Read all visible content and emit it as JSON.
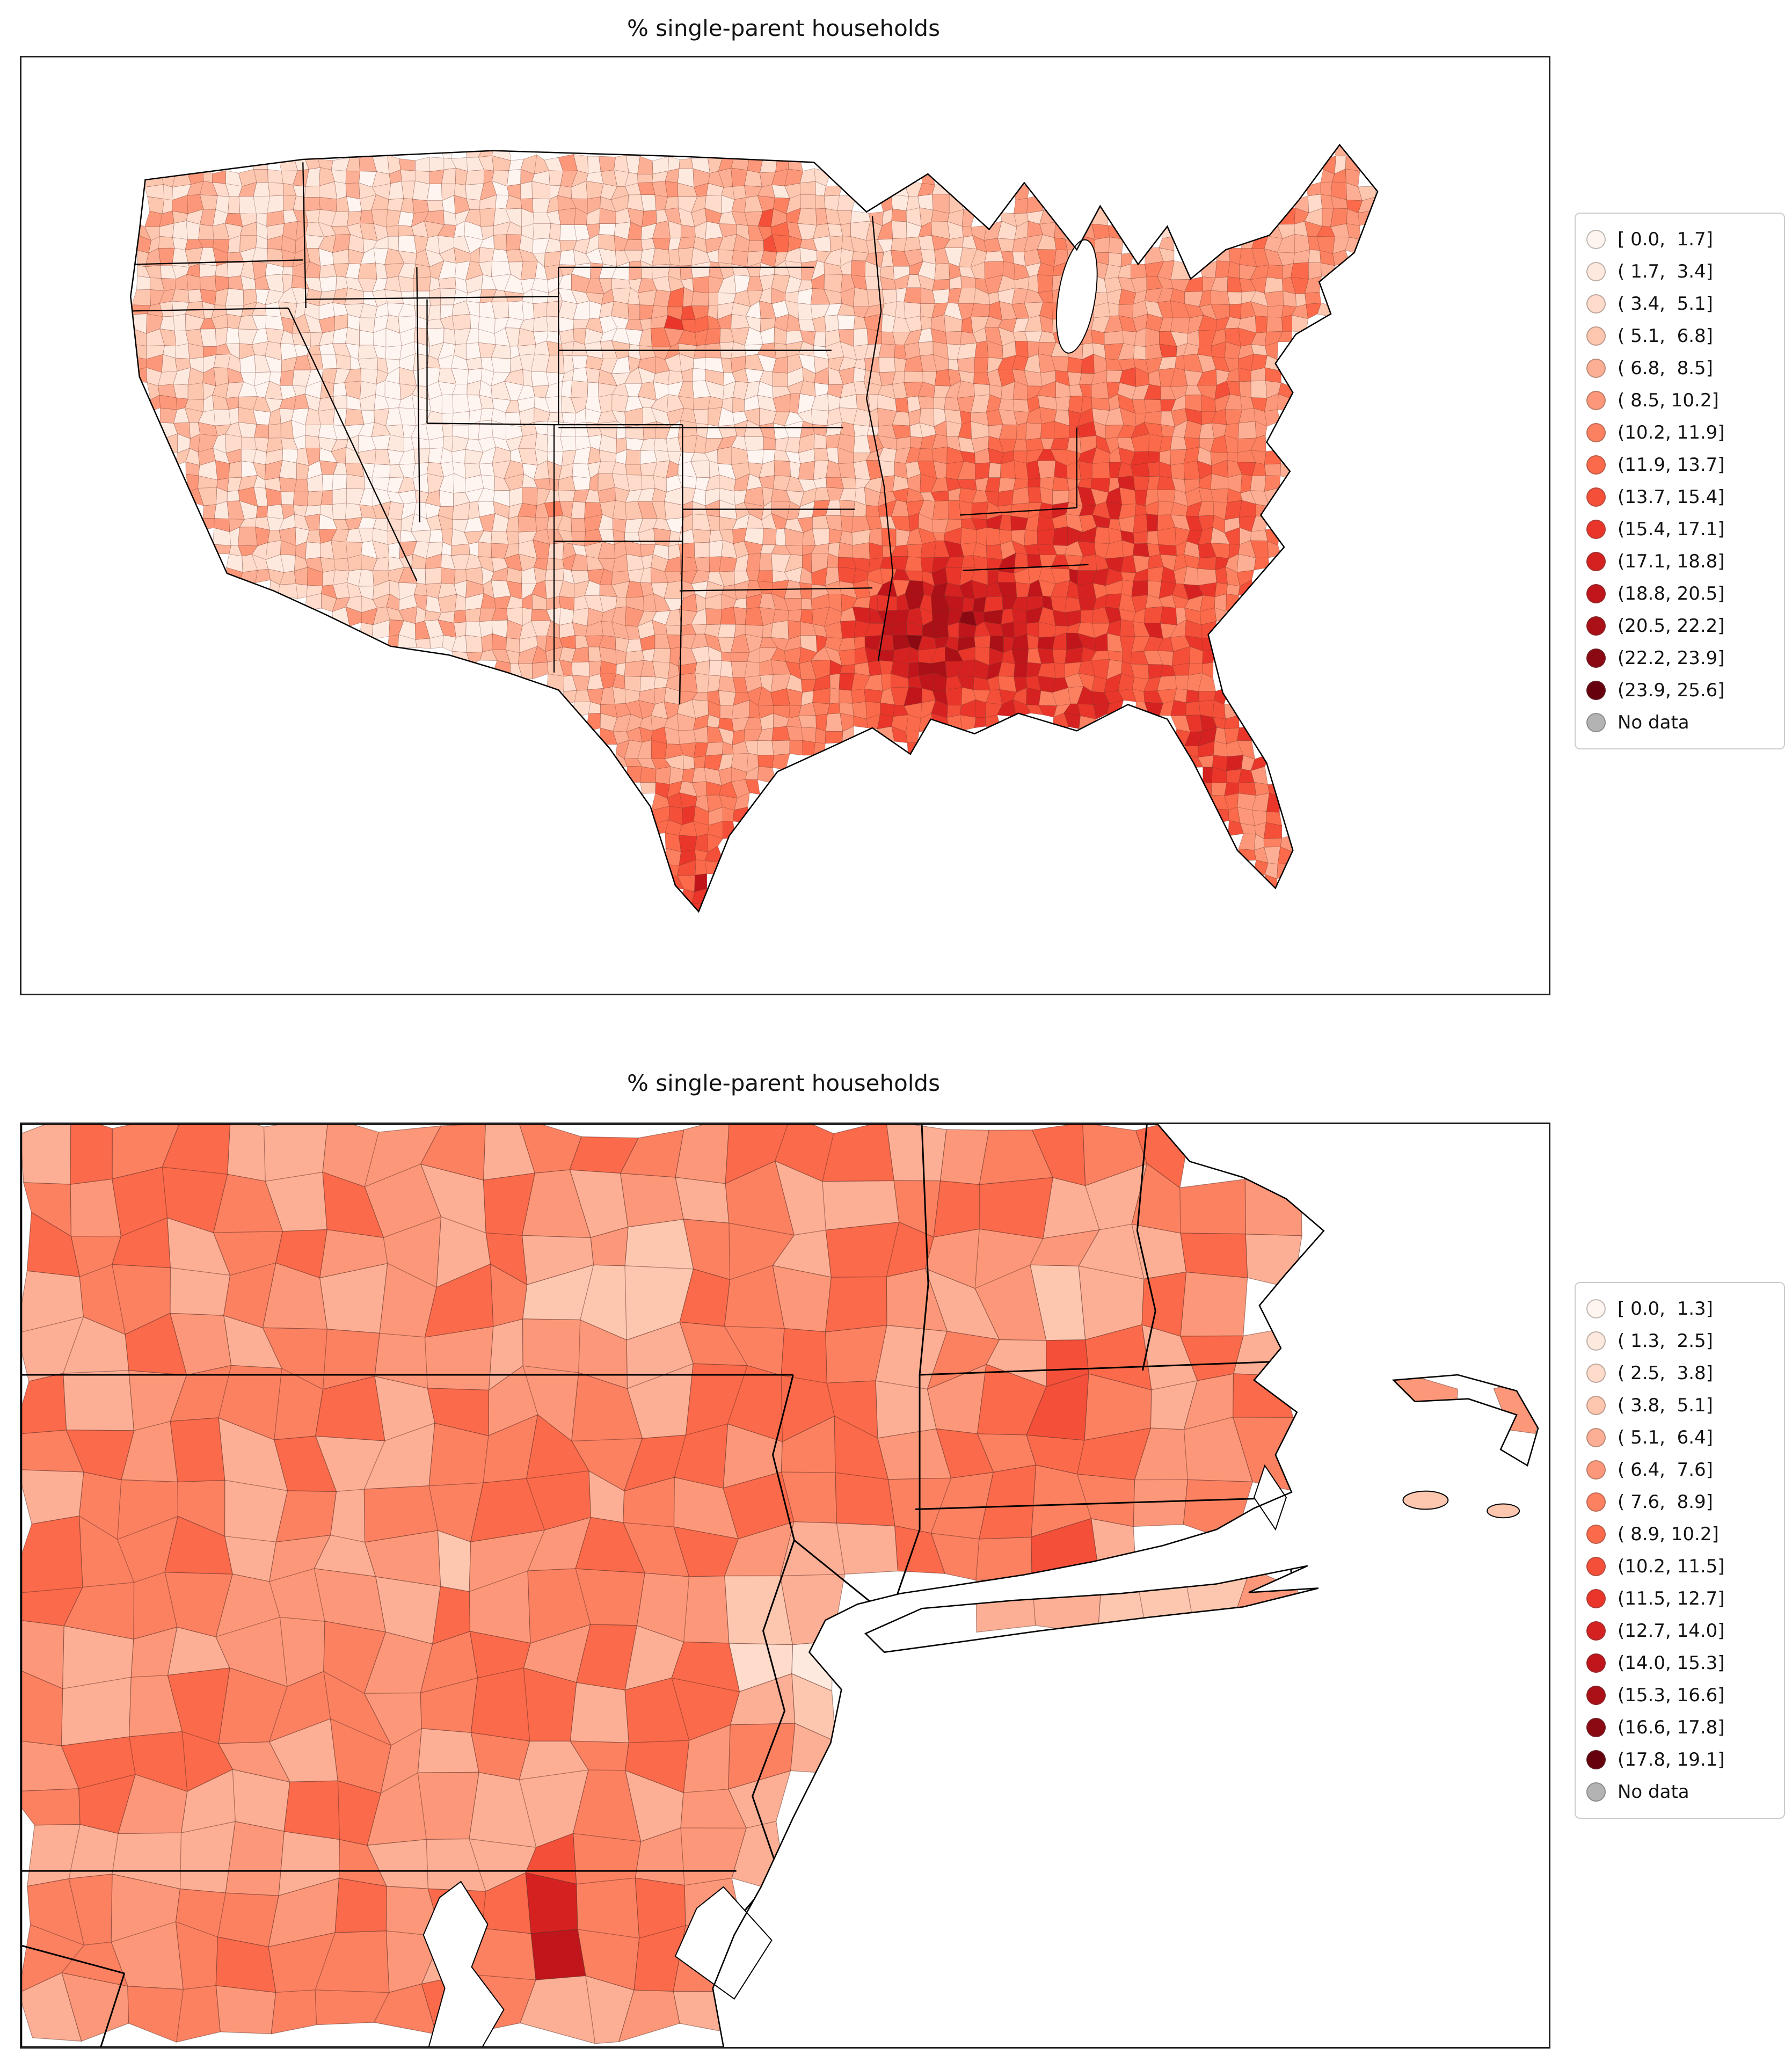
{
  "chart_data": [
    {
      "type": "heatmap",
      "map_type": "choropleth",
      "title": "% single-parent households",
      "region": "contiguous United States, county level",
      "colormap": "Reds",
      "unit": "percent",
      "vmin": 0.0,
      "vmax": 25.6,
      "n_bins": 15,
      "bin_edges": [
        0.0,
        1.7,
        3.4,
        5.1,
        6.8,
        8.5,
        10.2,
        11.9,
        13.7,
        15.4,
        17.1,
        18.8,
        20.5,
        22.2,
        23.9,
        25.6
      ],
      "bin_labels": [
        "[ 0.0,  1.7]",
        "( 1.7,  3.4]",
        "( 3.4,  5.1]",
        "( 5.1,  6.8]",
        "( 6.8,  8.5]",
        "( 8.5, 10.2]",
        "(10.2, 11.9]",
        "(11.9, 13.7]",
        "(13.7, 15.4]",
        "(15.4, 17.1]",
        "(17.1, 18.8]",
        "(18.8, 20.5]",
        "(20.5, 22.2]",
        "(22.2, 23.9]",
        "(23.9, 25.6]"
      ],
      "bin_colors": [
        "#fff5f0",
        "#fee9df",
        "#fedbcb",
        "#fdc6af",
        "#fcaf94",
        "#fc9879",
        "#fc8161",
        "#fb6a4a",
        "#f44f39",
        "#ea362a",
        "#d52221",
        "#c0151b",
        "#aa1016",
        "#8a0912",
        "#67000d"
      ],
      "no_data_label": "No data",
      "no_data_color": "#b3b3b3",
      "no_data_edge": "#8c8c8c",
      "legend_position": "center right",
      "grid": false
    },
    {
      "type": "heatmap",
      "map_type": "choropleth",
      "title": "% single-parent households",
      "region": "northeastern United States detail (New York, Pennsylvania, New Jersey, New England, Mid-Atlantic), county level",
      "colormap": "Reds",
      "unit": "percent",
      "vmin": 0.0,
      "vmax": 19.1,
      "n_bins": 15,
      "bin_edges": [
        0.0,
        1.3,
        2.5,
        3.8,
        5.1,
        6.4,
        7.6,
        8.9,
        10.2,
        11.5,
        12.7,
        14.0,
        15.3,
        16.6,
        17.8,
        19.1
      ],
      "bin_labels": [
        "[ 0.0,  1.3]",
        "( 1.3,  2.5]",
        "( 2.5,  3.8]",
        "( 3.8,  5.1]",
        "( 5.1,  6.4]",
        "( 6.4,  7.6]",
        "( 7.6,  8.9]",
        "( 8.9, 10.2]",
        "(10.2, 11.5]",
        "(11.5, 12.7]",
        "(12.7, 14.0]",
        "(14.0, 15.3]",
        "(15.3, 16.6]",
        "(16.6, 17.8]",
        "(17.8, 19.1]"
      ],
      "bin_colors": [
        "#fff5f0",
        "#fee9df",
        "#fedbcb",
        "#fdc6af",
        "#fcaf94",
        "#fc9879",
        "#fc8161",
        "#fb6a4a",
        "#f44f39",
        "#ea362a",
        "#d52221",
        "#c0151b",
        "#aa1016",
        "#8a0912",
        "#67000d"
      ],
      "no_data_label": "No data",
      "no_data_color": "#b3b3b3",
      "no_data_edge": "#8c8c8c",
      "legend_position": "center right",
      "grid": false
    }
  ]
}
